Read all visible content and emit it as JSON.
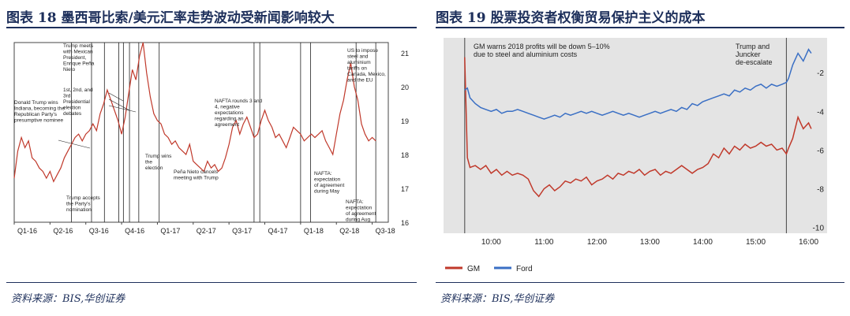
{
  "left_panel": {
    "title": "图表 18 墨西哥比索/美元汇率走势波动受新闻影响较大",
    "source": "资料来源：BIS,华创证券"
  },
  "right_panel": {
    "title": "图表 19 股票投资者权衡贸易保护主义的成本",
    "source": "资料来源：BIS,华创证券"
  },
  "chart_data": [
    {
      "type": "line",
      "title": "",
      "xlabel": "",
      "ylabel": "",
      "x_ticks": [
        "Q1-16",
        "Q2-16",
        "Q3-16",
        "Q4-16",
        "Q1-17",
        "Q2-17",
        "Q3-17",
        "Q4-17",
        "Q1-18",
        "Q2-18",
        "Q3-18"
      ],
      "x_range": [
        0,
        10.45
      ],
      "ylim": [
        16,
        21.3
      ],
      "y_ticks": [
        16,
        17,
        18,
        19,
        20,
        21
      ],
      "y_axis_side": "right",
      "series": [
        {
          "color": "#c0392b",
          "x": [
            0,
            0.1,
            0.2,
            0.3,
            0.4,
            0.5,
            0.6,
            0.7,
            0.8,
            0.9,
            1.0,
            1.1,
            1.2,
            1.3,
            1.4,
            1.5,
            1.6,
            1.7,
            1.8,
            1.9,
            2.0,
            2.1,
            2.2,
            2.3,
            2.4,
            2.5,
            2.6,
            2.7,
            2.8,
            2.9,
            3.0,
            3.1,
            3.2,
            3.3,
            3.4,
            3.5,
            3.6,
            3.7,
            3.8,
            3.9,
            4.0,
            4.1,
            4.2,
            4.3,
            4.4,
            4.5,
            4.6,
            4.7,
            4.8,
            4.9,
            5.0,
            5.1,
            5.2,
            5.3,
            5.4,
            5.5,
            5.6,
            5.7,
            5.8,
            5.9,
            6.0,
            6.1,
            6.2,
            6.3,
            6.4,
            6.5,
            6.6,
            6.7,
            6.8,
            6.9,
            7.0,
            7.1,
            7.2,
            7.3,
            7.4,
            7.5,
            7.6,
            7.7,
            7.8,
            7.9,
            8.0,
            8.1,
            8.2,
            8.3,
            8.4,
            8.5,
            8.6,
            8.7,
            8.8,
            8.9,
            9.0,
            9.1,
            9.2,
            9.3,
            9.4,
            9.5,
            9.6,
            9.7,
            9.8,
            9.9,
            10.0,
            10.1
          ],
          "y": [
            17.3,
            18.1,
            18.5,
            18.2,
            18.4,
            17.9,
            17.8,
            17.6,
            17.5,
            17.3,
            17.5,
            17.2,
            17.4,
            17.6,
            17.9,
            18.1,
            18.3,
            18.5,
            18.6,
            18.4,
            18.6,
            18.7,
            18.9,
            18.7,
            19.2,
            19.5,
            19.9,
            19.6,
            19.3,
            19.0,
            18.6,
            19.1,
            19.8,
            20.5,
            20.2,
            20.9,
            21.3,
            20.4,
            19.7,
            19.2,
            19.0,
            18.9,
            18.6,
            18.5,
            18.3,
            18.4,
            18.2,
            18.1,
            18.0,
            18.3,
            17.8,
            17.7,
            17.6,
            17.5,
            17.8,
            17.6,
            17.7,
            17.5,
            17.6,
            17.9,
            18.3,
            18.8,
            19.0,
            18.6,
            18.9,
            19.1,
            18.8,
            18.5,
            18.6,
            19.0,
            19.3,
            19.0,
            18.8,
            18.5,
            18.6,
            18.4,
            18.2,
            18.5,
            18.8,
            18.7,
            18.6,
            18.4,
            18.5,
            18.6,
            18.5,
            18.6,
            18.7,
            18.4,
            18.2,
            18.0,
            18.6,
            19.2,
            19.6,
            20.2,
            20.7,
            20.0,
            19.6,
            18.9,
            18.6,
            18.4,
            18.5,
            18.4
          ]
        }
      ],
      "event_lines_x": [
        1.6,
        2.16,
        2.52,
        2.92,
        3.05,
        3.22,
        3.48,
        4.05,
        6.7,
        6.86,
        8.0,
        8.28,
        9.55,
        10.1
      ],
      "annotations": [
        {
          "text": "Trump meets with Mexican President, Enrique Peña Nieto",
          "wrap": 14
        },
        {
          "text": "1st, 2nd, and 3rd Presidential election debates",
          "wrap": 14
        },
        {
          "text": "Donald Trump wins Indiana, becoming the Republican Party's presumptive nominee",
          "wrap": 22
        },
        {
          "text": "Trump wins the election",
          "wrap": 10
        },
        {
          "text": "Peña Nieto cancels meeting with Trump",
          "wrap": 20
        },
        {
          "text": "NAFTA rounds 3 and 4, negative expectations regarding an agreement",
          "wrap": 20
        },
        {
          "text": "US to impose steel and aluminium tariffs on Canada, Mexico, and the EU",
          "wrap": 16
        },
        {
          "text": "Trump accepts the Party's nomination",
          "wrap": 14
        },
        {
          "text": "NAFTA: expectation of agreement during May",
          "wrap": 12
        },
        {
          "text": "NAFTA: expectation of agreement during Aug",
          "wrap": 12
        }
      ]
    },
    {
      "type": "line",
      "title": "",
      "xlabel": "",
      "ylabel": "",
      "x_ticks": [
        "10:00",
        "11:00",
        "12:00",
        "13:00",
        "14:00",
        "15:00",
        "16:00"
      ],
      "x_range": [
        9.1,
        16.35
      ],
      "ylim": [
        -10.3,
        -0.2
      ],
      "y_ticks": [
        -2,
        -4,
        -6,
        -8,
        -10
      ],
      "y_axis_side": "right",
      "event_lines_x": [
        9.5,
        15.58
      ],
      "legend": {
        "position": "bottom-left",
        "entries": [
          "GM",
          "Ford"
        ]
      },
      "annotations": [
        {
          "text": "GM warns 2018 profits will be down 5–10% due to steel and aluminium costs",
          "wrap": 40
        },
        {
          "text": "Trump and Juncker de-escalate",
          "wrap": 16
        }
      ],
      "series": [
        {
          "name": "GM",
          "color": "#c0392b",
          "x": [
            9.5,
            9.55,
            9.6,
            9.7,
            9.8,
            9.9,
            10.0,
            10.1,
            10.2,
            10.3,
            10.4,
            10.5,
            10.6,
            10.7,
            10.8,
            10.9,
            11.0,
            11.1,
            11.2,
            11.3,
            11.4,
            11.5,
            11.6,
            11.7,
            11.8,
            11.9,
            12.0,
            12.1,
            12.2,
            12.3,
            12.4,
            12.5,
            12.6,
            12.7,
            12.8,
            12.9,
            13.0,
            13.1,
            13.2,
            13.3,
            13.4,
            13.5,
            13.6,
            13.7,
            13.8,
            13.9,
            14.0,
            14.1,
            14.2,
            14.3,
            14.4,
            14.5,
            14.6,
            14.7,
            14.8,
            14.9,
            15.0,
            15.1,
            15.2,
            15.3,
            15.4,
            15.5,
            15.58,
            15.62,
            15.7,
            15.8,
            15.9,
            16.0,
            16.05
          ],
          "y": [
            -1.2,
            -6.4,
            -6.9,
            -6.8,
            -7.0,
            -6.8,
            -7.2,
            -7.0,
            -7.3,
            -7.1,
            -7.3,
            -7.2,
            -7.3,
            -7.5,
            -8.1,
            -8.4,
            -8.0,
            -7.8,
            -8.1,
            -7.9,
            -7.6,
            -7.7,
            -7.5,
            -7.6,
            -7.4,
            -7.8,
            -7.6,
            -7.5,
            -7.3,
            -7.5,
            -7.2,
            -7.3,
            -7.1,
            -7.2,
            -7.0,
            -7.3,
            -7.1,
            -7.0,
            -7.3,
            -7.1,
            -7.2,
            -7.0,
            -6.8,
            -7.0,
            -7.2,
            -7.0,
            -6.9,
            -6.7,
            -6.2,
            -6.4,
            -5.9,
            -6.2,
            -5.8,
            -6.0,
            -5.7,
            -5.9,
            -5.8,
            -5.6,
            -5.8,
            -5.7,
            -6.0,
            -5.9,
            -6.2,
            -5.9,
            -5.4,
            -4.3,
            -4.9,
            -4.6,
            -4.9
          ]
        },
        {
          "name": "Ford",
          "color": "#3a6fc4",
          "x": [
            9.5,
            9.55,
            9.6,
            9.7,
            9.8,
            9.9,
            10.0,
            10.1,
            10.2,
            10.3,
            10.4,
            10.5,
            10.6,
            10.7,
            10.8,
            10.9,
            11.0,
            11.1,
            11.2,
            11.3,
            11.4,
            11.5,
            11.6,
            11.7,
            11.8,
            11.9,
            12.0,
            12.1,
            12.2,
            12.3,
            12.4,
            12.5,
            12.6,
            12.7,
            12.8,
            12.9,
            13.0,
            13.1,
            13.2,
            13.3,
            13.4,
            13.5,
            13.6,
            13.7,
            13.8,
            13.9,
            14.0,
            14.1,
            14.2,
            14.3,
            14.4,
            14.5,
            14.6,
            14.7,
            14.8,
            14.9,
            15.0,
            15.1,
            15.2,
            15.3,
            15.4,
            15.5,
            15.58,
            15.62,
            15.7,
            15.8,
            15.9,
            16.0,
            16.05
          ],
          "y": [
            -2.9,
            -2.8,
            -3.3,
            -3.6,
            -3.8,
            -3.9,
            -4.0,
            -3.9,
            -4.1,
            -4.0,
            -4.0,
            -3.9,
            -4.0,
            -4.1,
            -4.2,
            -4.3,
            -4.4,
            -4.3,
            -4.2,
            -4.3,
            -4.1,
            -4.2,
            -4.1,
            -4.0,
            -4.1,
            -4.0,
            -4.1,
            -4.2,
            -4.1,
            -4.0,
            -4.1,
            -4.2,
            -4.1,
            -4.2,
            -4.3,
            -4.2,
            -4.1,
            -4.0,
            -4.1,
            -4.0,
            -3.9,
            -4.0,
            -3.8,
            -3.9,
            -3.6,
            -3.7,
            -3.5,
            -3.4,
            -3.3,
            -3.2,
            -3.1,
            -3.2,
            -2.9,
            -3.0,
            -2.8,
            -2.9,
            -2.7,
            -2.6,
            -2.8,
            -2.6,
            -2.7,
            -2.6,
            -2.5,
            -2.3,
            -1.6,
            -1.0,
            -1.4,
            -0.8,
            -1.0
          ]
        }
      ]
    }
  ]
}
